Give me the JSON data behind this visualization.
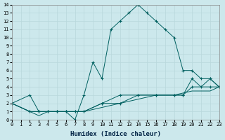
{
  "xlabel": "Humidex (Indice chaleur)",
  "bg_color": "#cce8ec",
  "grid_color": "#b8d8dc",
  "line_color": "#006060",
  "xlim": [
    0,
    23
  ],
  "ylim": [
    0,
    14
  ],
  "xticks": [
    0,
    1,
    2,
    3,
    4,
    5,
    6,
    7,
    8,
    9,
    10,
    11,
    12,
    13,
    14,
    15,
    16,
    17,
    18,
    19,
    20,
    21,
    22,
    23
  ],
  "yticks": [
    0,
    1,
    2,
    3,
    4,
    5,
    6,
    7,
    8,
    9,
    10,
    11,
    12,
    13,
    14
  ],
  "curve1_x": [
    0,
    2,
    3,
    4,
    5,
    6,
    7,
    8,
    9,
    10,
    11,
    12,
    13,
    14,
    15,
    16,
    17,
    18,
    19,
    20,
    21,
    22,
    23
  ],
  "curve1_y": [
    2,
    3,
    1,
    1,
    1,
    1,
    0,
    3,
    7,
    5,
    11,
    12,
    13,
    14,
    13,
    12,
    11,
    10,
    6,
    6,
    5,
    5,
    4
  ],
  "curve2_x": [
    0,
    2,
    3,
    4,
    5,
    6,
    7,
    8,
    10,
    12,
    14,
    16,
    18,
    19,
    20,
    21,
    22,
    23
  ],
  "curve2_y": [
    2,
    1,
    1,
    1,
    1,
    1,
    1,
    1,
    2,
    3,
    3,
    3,
    3,
    3,
    5,
    4,
    5,
    4
  ],
  "curve3_x": [
    0,
    2,
    3,
    4,
    5,
    6,
    7,
    8,
    10,
    12,
    14,
    16,
    18,
    19,
    20,
    22,
    23
  ],
  "curve3_y": [
    2,
    1,
    1,
    1,
    1,
    1,
    1,
    1,
    2,
    2,
    3,
    3,
    3,
    3,
    4,
    4,
    4
  ],
  "curve4_x": [
    0,
    2,
    3,
    4,
    5,
    6,
    7,
    8,
    10,
    12,
    14,
    16,
    18,
    20,
    22,
    23
  ],
  "curve4_y": [
    2,
    1,
    0.5,
    1,
    1,
    1,
    1,
    1,
    1.5,
    2,
    2.5,
    3,
    3,
    3.5,
    3.5,
    4
  ]
}
